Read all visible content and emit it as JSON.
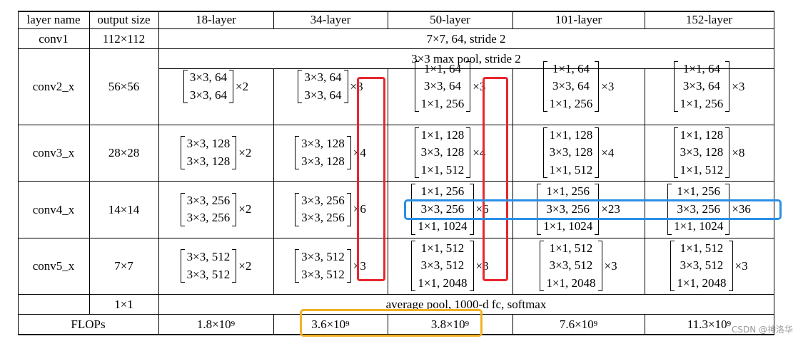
{
  "header": {
    "layer_name": "layer name",
    "output_size": "output size",
    "l18": "18-layer",
    "l34": "34-layer",
    "l50": "50-layer",
    "l101": "101-layer",
    "l152": "152-layer"
  },
  "rows": {
    "conv1": {
      "name": "conv1",
      "size": "112×112",
      "spec": "7×7, 64, stride 2"
    },
    "pool": {
      "spec": "3×3 max pool, stride 2"
    },
    "conv2": {
      "name": "conv2_x",
      "size": "56×56",
      "l18": {
        "lines": [
          "3×3, 64",
          "3×3, 64"
        ],
        "mult": "×2"
      },
      "l34": {
        "lines": [
          "3×3, 64",
          "3×3, 64"
        ],
        "mult": "×3"
      },
      "l50": {
        "lines": [
          "1×1, 64",
          "3×3, 64",
          "1×1, 256"
        ],
        "mult": "×3"
      },
      "l101": {
        "lines": [
          "1×1, 64",
          "3×3, 64",
          "1×1, 256"
        ],
        "mult": "×3"
      },
      "l152": {
        "lines": [
          "1×1, 64",
          "3×3, 64",
          "1×1, 256"
        ],
        "mult": "×3"
      }
    },
    "conv3": {
      "name": "conv3_x",
      "size": "28×28",
      "l18": {
        "lines": [
          "3×3, 128",
          "3×3, 128"
        ],
        "mult": "×2"
      },
      "l34": {
        "lines": [
          "3×3, 128",
          "3×3, 128"
        ],
        "mult": "×4"
      },
      "l50": {
        "lines": [
          "1×1, 128",
          "3×3, 128",
          "1×1, 512"
        ],
        "mult": "×4"
      },
      "l101": {
        "lines": [
          "1×1, 128",
          "3×3, 128",
          "1×1, 512"
        ],
        "mult": "×4"
      },
      "l152": {
        "lines": [
          "1×1, 128",
          "3×3, 128",
          "1×1, 512"
        ],
        "mult": "×8"
      }
    },
    "conv4": {
      "name": "conv4_x",
      "size": "14×14",
      "l18": {
        "lines": [
          "3×3, 256",
          "3×3, 256"
        ],
        "mult": "×2"
      },
      "l34": {
        "lines": [
          "3×3, 256",
          "3×3, 256"
        ],
        "mult": "×6"
      },
      "l50": {
        "lines": [
          "1×1, 256",
          "3×3, 256",
          "1×1, 1024"
        ],
        "mult": "×6"
      },
      "l101": {
        "lines": [
          "1×1, 256",
          "3×3, 256",
          "1×1, 1024"
        ],
        "mult": "×23"
      },
      "l152": {
        "lines": [
          "1×1, 256",
          "3×3, 256",
          "1×1, 1024"
        ],
        "mult": "×36"
      }
    },
    "conv5": {
      "name": "conv5_x",
      "size": "7×7",
      "l18": {
        "lines": [
          "3×3, 512",
          "3×3, 512"
        ],
        "mult": "×2"
      },
      "l34": {
        "lines": [
          "3×3, 512",
          "3×3, 512"
        ],
        "mult": "×3"
      },
      "l50": {
        "lines": [
          "1×1, 512",
          "3×3, 512",
          "1×1, 2048"
        ],
        "mult": "×3"
      },
      "l101": {
        "lines": [
          "1×1, 512",
          "3×3, 512",
          "1×1, 2048"
        ],
        "mult": "×3"
      },
      "l152": {
        "lines": [
          "1×1, 512",
          "3×3, 512",
          "1×1, 2048"
        ],
        "mult": "×3"
      }
    },
    "fc": {
      "size": "1×1",
      "spec": "average pool, 1000-d fc, softmax"
    },
    "flops": {
      "name": "FLOPs",
      "l18": "1.8×10",
      "l34": "3.6×10",
      "l50": "3.8×10",
      "l101": "7.6×10",
      "l152": "11.3×10",
      "exp": "9"
    }
  },
  "watermark": "CSDN @神洛华",
  "highlight_colors": {
    "red": "#e8262d",
    "blue": "#2a8fe6",
    "orange": "#f4b223"
  }
}
